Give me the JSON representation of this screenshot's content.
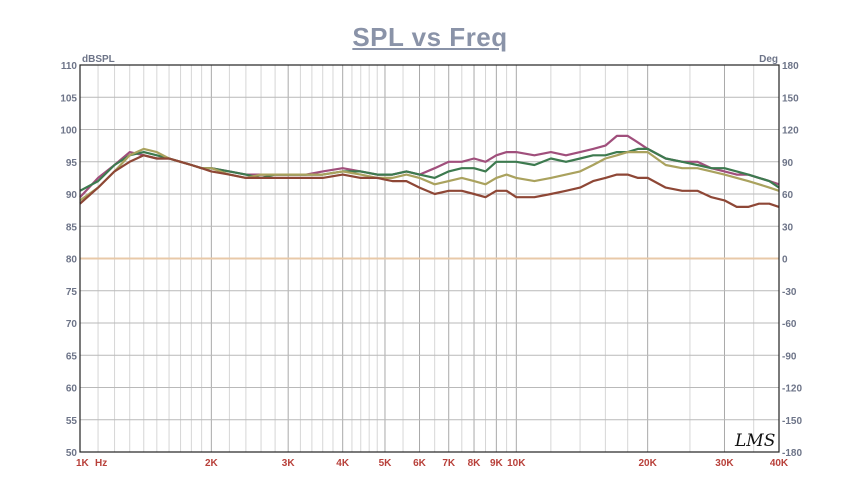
{
  "chart_data": {
    "type": "line",
    "title": "SPL vs Freq",
    "y_left_unit": "dBSPL",
    "y_right_unit": "Deg",
    "x_unit": "Hz",
    "x_scale": "log",
    "xlim": [
      1000,
      40000
    ],
    "ylim": [
      50,
      110
    ],
    "y2lim": [
      -180,
      180
    ],
    "grid": true,
    "y_ticks": [
      110,
      105,
      100,
      95,
      90,
      85,
      80,
      75,
      70,
      65,
      60,
      55,
      50
    ],
    "y2_ticks": [
      180,
      150,
      120,
      90,
      60,
      30,
      0,
      -30,
      -60,
      -90,
      -120,
      -150,
      -180
    ],
    "x_tick_values": [
      1000,
      2000,
      3000,
      4000,
      5000,
      6000,
      7000,
      8000,
      9000,
      10000,
      20000,
      30000,
      40000
    ],
    "x_tick_labels": [
      "1K",
      "2K",
      "3K",
      "4K",
      "5K",
      "6K",
      "7K",
      "8K",
      "9K",
      "10K",
      "20K",
      "30K",
      "40K"
    ],
    "x_minor_ticks": [
      1100,
      1200,
      1300,
      1400,
      1500,
      1600,
      1700,
      1800,
      1900,
      2200,
      2400,
      2600,
      2800,
      3200,
      3400,
      3600,
      3800,
      4200,
      4400,
      4600,
      4800,
      5500,
      6500,
      7500,
      8500,
      9500,
      12000,
      14000,
      16000,
      18000,
      25000,
      35000
    ],
    "reference_line": {
      "value": 0,
      "axis": "right",
      "color": "#e8c9a8"
    },
    "x": [
      1000,
      1100,
      1200,
      1300,
      1400,
      1500,
      1600,
      1700,
      1800,
      1900,
      2000,
      2200,
      2400,
      2600,
      2800,
      3000,
      3300,
      3600,
      4000,
      4400,
      4800,
      5200,
      5600,
      6000,
      6500,
      7000,
      7500,
      8000,
      8500,
      9000,
      9500,
      10000,
      11000,
      12000,
      13000,
      14000,
      15000,
      16000,
      17000,
      18000,
      19000,
      20000,
      22000,
      24000,
      26000,
      28000,
      30000,
      32000,
      34000,
      36000,
      38000,
      40000
    ],
    "series": [
      {
        "color": "#a04f7c",
        "values": [
          89.5,
          92.5,
          94.5,
          96.5,
          96,
          95.5,
          95.5,
          95,
          94.5,
          94,
          94,
          93.5,
          93,
          93,
          93,
          93,
          93,
          93.5,
          94,
          93.5,
          93,
          93,
          93.5,
          93,
          94,
          95,
          95,
          95.5,
          95,
          96,
          96.5,
          96.5,
          96,
          96.5,
          96,
          96.5,
          97,
          97.5,
          99,
          99,
          98,
          97,
          95.5,
          95,
          95,
          94,
          93.5,
          93,
          93,
          92.5,
          92,
          91.5
        ]
      },
      {
        "color": "#3d7a4f",
        "values": [
          90.5,
          92,
          94.5,
          96,
          96.5,
          96,
          95.5,
          95,
          94.5,
          94,
          94,
          93.5,
          93,
          92.5,
          93,
          93,
          93,
          93,
          93.5,
          93.5,
          93,
          93,
          93.5,
          93,
          92.5,
          93.5,
          94,
          94,
          93.5,
          95,
          95,
          95,
          94.5,
          95.5,
          95,
          95.5,
          96,
          96,
          96.5,
          96.5,
          97,
          97,
          95.5,
          95,
          94.5,
          94,
          94,
          93.5,
          93,
          92.5,
          92,
          91
        ]
      },
      {
        "color": "#aaa25e",
        "values": [
          89,
          91,
          93.5,
          96,
          97,
          96.5,
          95.5,
          95,
          94.5,
          94,
          94,
          93,
          92.5,
          93,
          93,
          93,
          93,
          93,
          93.5,
          93,
          92.5,
          92.5,
          93,
          92.5,
          91.5,
          92,
          92.5,
          92,
          91.5,
          92.5,
          93,
          92.5,
          92,
          92.5,
          93,
          93.5,
          94.5,
          95.5,
          96,
          96.5,
          96.5,
          96.5,
          94.5,
          94,
          94,
          93.5,
          93,
          92.5,
          92,
          91.5,
          91,
          90.5
        ]
      },
      {
        "color": "#8e4736",
        "values": [
          88.5,
          91,
          93.5,
          95,
          96,
          95.5,
          95.5,
          95,
          94.5,
          94,
          93.5,
          93,
          92.5,
          92.5,
          92.5,
          92.5,
          92.5,
          92.5,
          93,
          92.5,
          92.5,
          92,
          92,
          91,
          90,
          90.5,
          90.5,
          90,
          89.5,
          90.5,
          90.5,
          89.5,
          89.5,
          90,
          90.5,
          91,
          92,
          92.5,
          93,
          93,
          92.5,
          92.5,
          91,
          90.5,
          90.5,
          89.5,
          89,
          88,
          88,
          88.5,
          88.5,
          88
        ]
      }
    ]
  },
  "logo": {
    "text": "LMS"
  }
}
